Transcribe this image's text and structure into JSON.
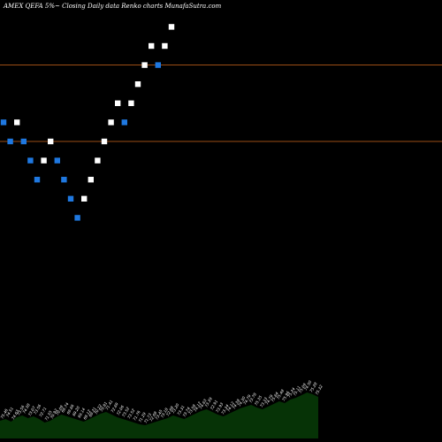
{
  "chart_data": {
    "type": "renko",
    "title": "AMEX QEFA 5%~ Closing Daily data Renko charts MunafaSutra.com",
    "colors": {
      "background": "#000000",
      "up_brick": "#ffffff",
      "down_brick": "#1f78e0",
      "reference_line": "#d2691e",
      "volume_area": "#063306"
    },
    "reference_lines": [
      70.25,
      73.85
    ],
    "ylim": [
      60.5,
      76.5
    ],
    "bricks": [
      {
        "dir": "down",
        "value": 71.15
      },
      {
        "dir": "down",
        "value": 70.25
      },
      {
        "dir": "up",
        "value": 71.15
      },
      {
        "dir": "down",
        "value": 70.25
      },
      {
        "dir": "down",
        "value": 69.35
      },
      {
        "dir": "down",
        "value": 68.45
      },
      {
        "dir": "up",
        "value": 69.35
      },
      {
        "dir": "up",
        "value": 70.25
      },
      {
        "dir": "down",
        "value": 69.35
      },
      {
        "dir": "down",
        "value": 68.45
      },
      {
        "dir": "down",
        "value": 67.55
      },
      {
        "dir": "down",
        "value": 66.65
      },
      {
        "dir": "up",
        "value": 67.55
      },
      {
        "dir": "up",
        "value": 68.45
      },
      {
        "dir": "up",
        "value": 69.35
      },
      {
        "dir": "up",
        "value": 70.25
      },
      {
        "dir": "up",
        "value": 71.15
      },
      {
        "dir": "up",
        "value": 72.05
      },
      {
        "dir": "down",
        "value": 71.15
      },
      {
        "dir": "up",
        "value": 72.05
      },
      {
        "dir": "up",
        "value": 72.95
      },
      {
        "dir": "up",
        "value": 73.85
      },
      {
        "dir": "up",
        "value": 74.75
      },
      {
        "dir": "down",
        "value": 73.85
      },
      {
        "dir": "up",
        "value": 74.75
      },
      {
        "dir": "up",
        "value": 75.65
      }
    ],
    "volume_profile": [
      20,
      22,
      19,
      24,
      26,
      23,
      25,
      22,
      18,
      20,
      24,
      27,
      25,
      23,
      21,
      19,
      22,
      25,
      28,
      30,
      27,
      24,
      22,
      20,
      18,
      16,
      15,
      17,
      19,
      21,
      23,
      26,
      24,
      22,
      25,
      28,
      31,
      33,
      30,
      27,
      25,
      28,
      31,
      34,
      36,
      38,
      35,
      33,
      36,
      39,
      42,
      40,
      44,
      46,
      49,
      52,
      50,
      47
    ],
    "price_labels": [
      "75.46",
      "74.51",
      "74.63",
      "73.56",
      "74.58",
      "73.07",
      "73.56",
      "72.71",
      "71.55",
      "70.92",
      "70.09",
      "69.74",
      "69.66",
      "69.20",
      "69.14",
      "69.12",
      "69.21",
      "70.22",
      "70.81",
      "71.41",
      "72.69",
      "72.06",
      "73.52",
      "73.52",
      "71.76",
      "71.29",
      "71.73",
      "72.68",
      "73.45",
      "73.18",
      "72.68",
      "73.20",
      "73.31",
      "73.74",
      "73.58",
      "74.12",
      "74.63",
      "73.39",
      "72.91",
      "73.93",
      "73.34",
      "74.12",
      "74.38",
      "74.30",
      "74.79",
      "73.78",
      "75.35",
      "73.33",
      "74.79",
      "75.64",
      "75.48",
      "75.96",
      "75.24",
      "75.11",
      "75.09",
      "74.50",
      "75.28",
      "75.32"
    ]
  }
}
